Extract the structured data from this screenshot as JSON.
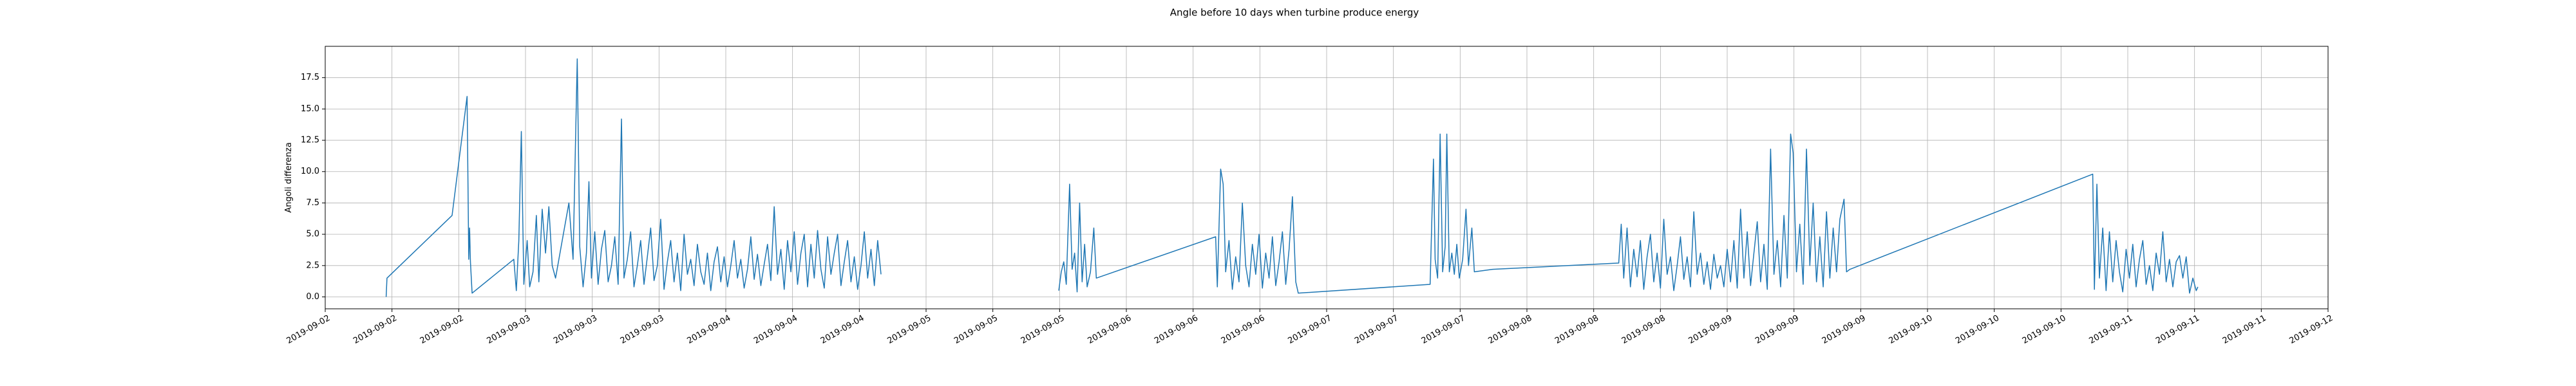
{
  "chart_data": {
    "type": "line",
    "title": "Angle before 10 days when turbine produce energy",
    "ylabel": "Angoli differenza",
    "xlim": [
      0,
      240
    ],
    "ylim": [
      -0.95,
      20.0
    ],
    "grid": true,
    "xticks": [
      {
        "value": 0,
        "label": "2019-09-02"
      },
      {
        "value": 8,
        "label": "2019-09-02"
      },
      {
        "value": 16,
        "label": "2019-09-02"
      },
      {
        "value": 24,
        "label": "2019-09-03"
      },
      {
        "value": 32,
        "label": "2019-09-03"
      },
      {
        "value": 40,
        "label": "2019-09-03"
      },
      {
        "value": 48,
        "label": "2019-09-04"
      },
      {
        "value": 56,
        "label": "2019-09-04"
      },
      {
        "value": 64,
        "label": "2019-09-04"
      },
      {
        "value": 72,
        "label": "2019-09-05"
      },
      {
        "value": 80,
        "label": "2019-09-05"
      },
      {
        "value": 88,
        "label": "2019-09-05"
      },
      {
        "value": 96,
        "label": "2019-09-06"
      },
      {
        "value": 104,
        "label": "2019-09-06"
      },
      {
        "value": 112,
        "label": "2019-09-06"
      },
      {
        "value": 120,
        "label": "2019-09-07"
      },
      {
        "value": 128,
        "label": "2019-09-07"
      },
      {
        "value": 136,
        "label": "2019-09-07"
      },
      {
        "value": 144,
        "label": "2019-09-08"
      },
      {
        "value": 152,
        "label": "2019-09-08"
      },
      {
        "value": 160,
        "label": "2019-09-08"
      },
      {
        "value": 168,
        "label": "2019-09-09"
      },
      {
        "value": 176,
        "label": "2019-09-09"
      },
      {
        "value": 184,
        "label": "2019-09-09"
      },
      {
        "value": 192,
        "label": "2019-09-10"
      },
      {
        "value": 200,
        "label": "2019-09-10"
      },
      {
        "value": 208,
        "label": "2019-09-10"
      },
      {
        "value": 216,
        "label": "2019-09-11"
      },
      {
        "value": 224,
        "label": "2019-09-11"
      },
      {
        "value": 232,
        "label": "2019-09-11"
      },
      {
        "value": 240,
        "label": "2019-09-12"
      }
    ],
    "yticks": [
      {
        "value": 0,
        "label": "0.0"
      },
      {
        "value": 2.5,
        "label": "2.5"
      },
      {
        "value": 5,
        "label": "5.0"
      },
      {
        "value": 7.5,
        "label": "7.5"
      },
      {
        "value": 10,
        "label": "10.0"
      },
      {
        "value": 12.5,
        "label": "12.5"
      },
      {
        "value": 15,
        "label": "15.0"
      },
      {
        "value": 17.5,
        "label": "17.5"
      }
    ],
    "series": [
      {
        "color": "#1f77b4",
        "x": [
          7.3,
          7.4,
          15.2,
          17.0,
          17.2,
          17.3,
          17.4,
          17.6,
          22.6,
          22.9,
          23.2,
          23.5,
          23.8,
          24.2,
          24.5,
          24.9,
          25.3,
          25.6,
          26.0,
          26.4,
          26.8,
          27.2,
          27.6,
          28.0,
          29.2,
          29.7,
          30.2,
          30.5,
          30.9,
          31.3,
          31.6,
          31.9,
          32.3,
          32.7,
          33.1,
          33.5,
          33.9,
          34.3,
          34.7,
          35.1,
          35.5,
          35.8,
          36.2,
          36.6,
          37.0,
          37.4,
          37.8,
          38.2,
          38.6,
          39.0,
          39.4,
          39.8,
          40.2,
          40.6,
          41.0,
          41.4,
          41.8,
          42.2,
          42.6,
          43.0,
          43.4,
          43.8,
          44.2,
          44.6,
          45.0,
          45.4,
          45.8,
          46.2,
          46.6,
          47.0,
          47.4,
          47.8,
          48.2,
          48.6,
          49.0,
          49.4,
          49.8,
          50.2,
          50.6,
          51.0,
          51.4,
          51.8,
          52.2,
          52.6,
          53.0,
          53.4,
          53.8,
          54.2,
          54.6,
          55.0,
          55.4,
          55.8,
          56.2,
          56.6,
          57.0,
          57.4,
          57.8,
          58.2,
          58.6,
          59.0,
          59.4,
          59.8,
          60.2,
          60.6,
          61.0,
          61.4,
          61.8,
          62.2,
          62.6,
          63.0,
          63.4,
          63.8,
          64.2,
          64.6,
          65.0,
          65.4,
          65.8,
          66.2,
          66.6,
          null,
          87.9,
          88.2,
          88.5,
          88.8,
          89.2,
          89.5,
          89.8,
          90.1,
          90.4,
          90.7,
          91.0,
          91.3,
          91.7,
          92.1,
          92.4,
          106.7,
          106.9,
          107.3,
          107.6,
          107.9,
          108.3,
          108.7,
          109.1,
          109.5,
          109.9,
          110.3,
          110.7,
          111.1,
          111.5,
          111.9,
          112.3,
          112.7,
          113.1,
          113.5,
          113.9,
          114.3,
          114.7,
          115.1,
          115.5,
          115.9,
          116.3,
          116.6,
          132.4,
          132.8,
          133.0,
          133.3,
          133.6,
          133.9,
          134.2,
          134.4,
          134.7,
          135.0,
          135.3,
          135.6,
          135.9,
          136.3,
          136.7,
          137.0,
          137.4,
          137.7,
          139.9,
          155.0,
          155.3,
          155.6,
          156.0,
          156.4,
          156.8,
          157.2,
          157.6,
          158.0,
          158.4,
          158.8,
          159.2,
          159.6,
          160.0,
          160.4,
          160.8,
          161.2,
          161.6,
          162.0,
          162.4,
          162.8,
          163.2,
          163.6,
          164.0,
          164.4,
          164.8,
          165.2,
          165.6,
          166.0,
          166.4,
          166.8,
          167.2,
          167.6,
          168.0,
          168.4,
          168.8,
          169.2,
          169.6,
          170.0,
          170.4,
          170.8,
          171.2,
          171.6,
          172.0,
          172.4,
          172.8,
          173.2,
          173.6,
          174.0,
          174.4,
          174.8,
          175.2,
          175.6,
          175.9,
          176.3,
          176.7,
          177.1,
          177.5,
          177.9,
          178.3,
          178.7,
          179.1,
          179.5,
          179.9,
          180.3,
          180.7,
          181.1,
          181.5,
          182.0,
          182.3,
          182.7,
          211.8,
          212.0,
          212.3,
          212.6,
          213.0,
          213.4,
          213.8,
          214.2,
          214.6,
          215.0,
          215.4,
          215.8,
          216.2,
          216.6,
          217.0,
          217.4,
          217.8,
          218.2,
          218.6,
          219.0,
          219.4,
          219.8,
          220.2,
          220.6,
          221.0,
          221.4,
          221.8,
          222.2,
          222.6,
          223.0,
          223.4,
          223.8,
          224.2,
          224.4
        ],
        "values": [
          0.0,
          1.5,
          6.5,
          16.0,
          3.0,
          5.5,
          2.8,
          0.3,
          3.0,
          0.5,
          4.5,
          13.2,
          1.0,
          4.5,
          0.8,
          2.0,
          6.5,
          1.2,
          7.0,
          3.5,
          7.2,
          2.5,
          1.5,
          3.0,
          7.5,
          3.0,
          19.0,
          4.0,
          0.8,
          3.5,
          9.2,
          1.5,
          5.2,
          1.0,
          3.8,
          5.3,
          1.2,
          2.5,
          4.8,
          1.0,
          14.2,
          1.5,
          3.0,
          5.2,
          0.8,
          2.5,
          4.5,
          1.0,
          3.2,
          5.5,
          1.3,
          2.5,
          6.2,
          0.6,
          2.8,
          4.5,
          1.2,
          3.5,
          0.5,
          5.0,
          1.8,
          3.0,
          0.9,
          4.2,
          2.0,
          1.0,
          3.5,
          0.5,
          2.8,
          4.0,
          1.2,
          3.2,
          0.8,
          2.5,
          4.5,
          1.5,
          3.0,
          0.7,
          2.2,
          4.8,
          1.4,
          3.4,
          0.9,
          2.6,
          4.2,
          1.3,
          7.2,
          1.8,
          3.8,
          0.6,
          4.5,
          2.0,
          5.2,
          1.0,
          3.5,
          5.0,
          0.8,
          4.2,
          1.5,
          5.3,
          2.2,
          0.7,
          4.8,
          1.8,
          3.5,
          5.0,
          0.9,
          2.8,
          4.5,
          1.2,
          3.2,
          0.6,
          2.5,
          5.2,
          1.5,
          3.8,
          0.9,
          4.5,
          1.8,
          null,
          0.5,
          2.0,
          2.8,
          1.0,
          9.0,
          2.2,
          3.5,
          0.4,
          7.5,
          1.2,
          4.2,
          0.8,
          2.0,
          5.5,
          1.5,
          4.8,
          0.8,
          10.2,
          9.0,
          2.0,
          4.5,
          0.6,
          3.2,
          1.2,
          7.5,
          2.5,
          0.8,
          4.2,
          1.8,
          5.0,
          0.7,
          3.5,
          1.5,
          4.8,
          0.9,
          2.8,
          5.2,
          1.0,
          3.8,
          8.0,
          1.2,
          0.3,
          1.0,
          11.0,
          3.0,
          1.5,
          13.0,
          2.0,
          4.0,
          13.0,
          2.0,
          3.5,
          1.8,
          4.2,
          1.5,
          3.0,
          7.0,
          2.5,
          5.5,
          2.0,
          2.2,
          2.7,
          5.8,
          1.5,
          5.5,
          0.8,
          3.8,
          1.6,
          4.5,
          0.6,
          3.2,
          5.0,
          1.2,
          3.5,
          0.7,
          6.2,
          1.8,
          3.2,
          0.5,
          2.5,
          4.8,
          1.4,
          3.2,
          0.8,
          6.8,
          1.8,
          3.5,
          1.0,
          2.8,
          0.6,
          3.4,
          1.5,
          2.5,
          0.8,
          3.8,
          1.2,
          4.5,
          0.7,
          7.0,
          1.5,
          5.2,
          0.9,
          3.5,
          6.0,
          1.2,
          4.2,
          0.6,
          11.8,
          1.8,
          4.5,
          0.8,
          6.5,
          1.5,
          13.0,
          11.5,
          2.0,
          5.8,
          1.0,
          11.8,
          2.5,
          7.5,
          1.2,
          4.8,
          0.8,
          6.8,
          1.5,
          5.5,
          2.0,
          6.2,
          7.8,
          2.0,
          2.2,
          9.8,
          0.6,
          9.0,
          1.5,
          5.5,
          0.5,
          5.2,
          1.2,
          4.5,
          2.0,
          0.4,
          3.8,
          1.5,
          4.2,
          0.8,
          3.0,
          4.5,
          1.0,
          2.5,
          0.5,
          3.5,
          1.8,
          5.2,
          1.2,
          3.0,
          0.8,
          2.8,
          3.3,
          1.5,
          3.2,
          0.3,
          1.5,
          0.5,
          0.8
        ]
      }
    ]
  }
}
